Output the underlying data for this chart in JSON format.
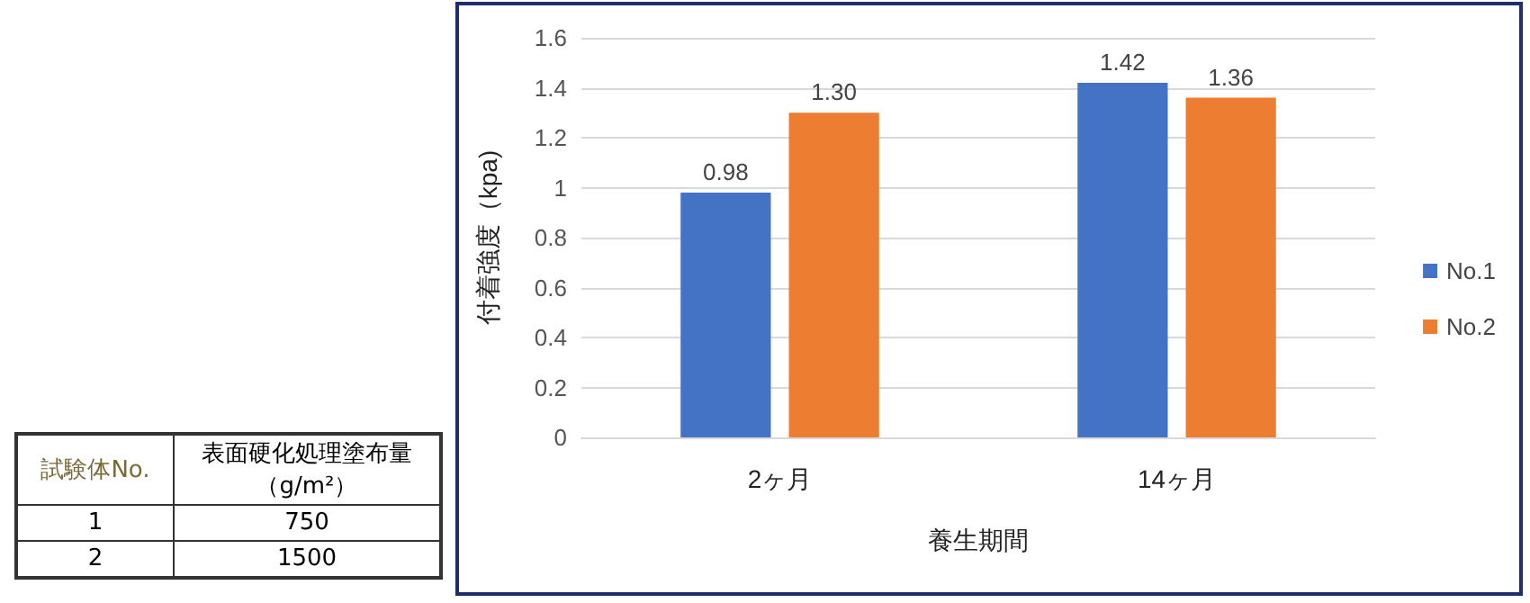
{
  "chart_data": [
    {
      "type": "other",
      "annotations": [
        "試験体No.",
        "表面硬化処理塗布量（g/m²）",
        "1",
        "750",
        "2",
        "1500"
      ]
    },
    {
      "type": "bar",
      "xlabel": "養生期間",
      "ylabel": "付着強度（kpa)",
      "categories": [
        "2ヶ月",
        "14ヶ月"
      ],
      "series": [
        {
          "name": "No.1",
          "color": "#4472c4",
          "values": [
            0.98,
            1.42
          ],
          "value_labels": [
            "0.98",
            "1.42"
          ]
        },
        {
          "name": "No.2",
          "color": "#ed7d31",
          "values": [
            1.3,
            1.36
          ],
          "value_labels": [
            "1.30",
            "1.36"
          ]
        }
      ],
      "ylim": [
        0,
        1.6
      ],
      "yticks": [
        0,
        0.2,
        0.4,
        0.6,
        0.8,
        1,
        1.2,
        1.4,
        1.6
      ],
      "grid": "y",
      "legend": "right"
    }
  ]
}
